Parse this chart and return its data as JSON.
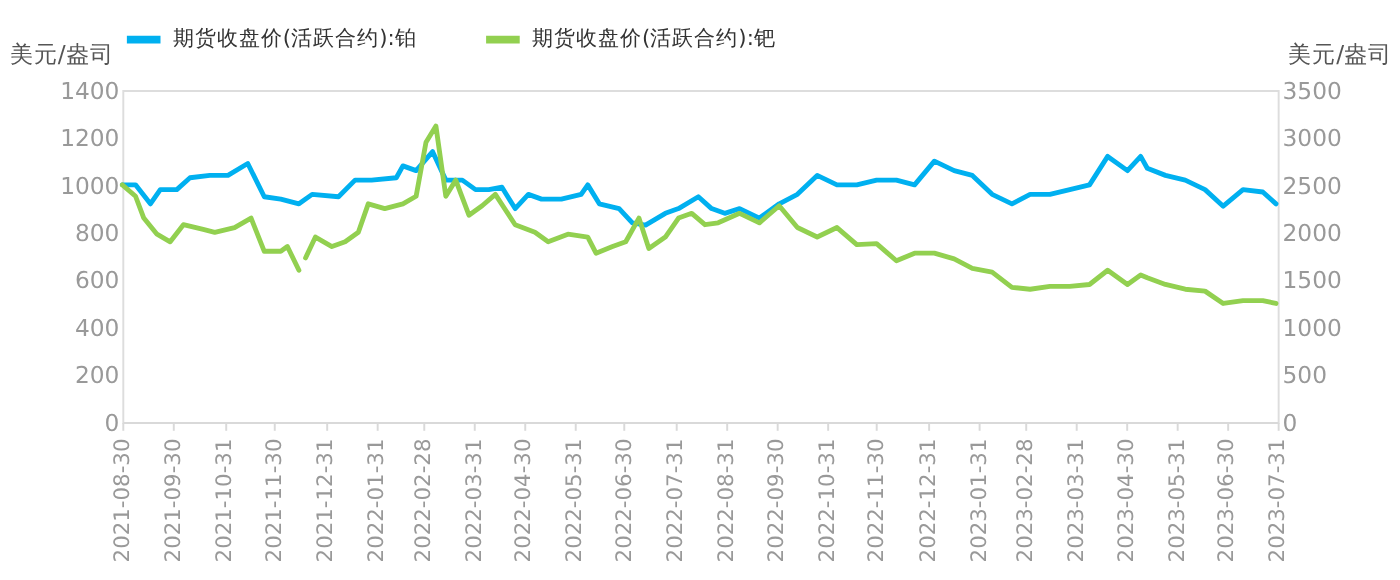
{
  "chart_data": {
    "type": "line",
    "ylabel": "美元/盎司",
    "y2label": "美元/盎司",
    "legend": "top",
    "grid": false,
    "marker": "none",
    "line_style": "solid",
    "ylim": [
      0,
      1400
    ],
    "yticks": [
      0,
      200,
      400,
      600,
      800,
      1000,
      1200,
      1400
    ],
    "y2lim": [
      0,
      3500
    ],
    "y2ticks": [
      0,
      500,
      1000,
      1500,
      2000,
      2500,
      3000,
      3500
    ],
    "xlim": [
      "2021-08-30",
      "2023-07-31"
    ],
    "xticks": [
      "2021-08-30",
      "2021-09-30",
      "2021-10-31",
      "2021-11-30",
      "2021-12-31",
      "2022-01-31",
      "2022-02-28",
      "2022-03-31",
      "2022-04-30",
      "2022-05-31",
      "2022-06-30",
      "2022-07-31",
      "2022-08-31",
      "2022-09-30",
      "2022-10-31",
      "2022-11-30",
      "2022-12-31",
      "2023-01-31",
      "2023-02-28",
      "2023-03-31",
      "2023-04-30",
      "2023-05-31",
      "2023-06-30",
      "2023-07-31"
    ],
    "series": [
      {
        "name": "期货收盘价(活跃合约):铂",
        "color": "#00b0f0",
        "x": [
          "2021-08-30",
          "2021-09-07",
          "2021-09-16",
          "2021-09-22",
          "2021-10-02",
          "2021-10-10",
          "2021-10-22",
          "2021-11-02",
          "2021-11-14",
          "2021-11-24",
          "2021-12-04",
          "2021-12-15",
          "2021-12-23",
          "2022-01-08",
          "2022-01-18",
          "2022-01-28",
          "2022-02-12",
          "2022-02-16",
          "2022-02-24",
          "2022-03-06",
          "2022-03-14",
          "2022-03-24",
          "2022-04-01",
          "2022-04-09",
          "2022-04-17",
          "2022-04-25",
          "2022-05-03",
          "2022-05-11",
          "2022-05-23",
          "2022-06-04",
          "2022-06-08",
          "2022-06-15",
          "2022-06-27",
          "2022-07-05",
          "2022-07-13",
          "2022-07-25",
          "2022-08-02",
          "2022-08-14",
          "2022-08-22",
          "2022-08-30",
          "2022-09-08",
          "2022-09-20",
          "2022-10-02",
          "2022-10-13",
          "2022-10-25",
          "2022-11-06",
          "2022-11-18",
          "2022-11-30",
          "2022-12-12",
          "2022-12-23",
          "2023-01-04",
          "2023-01-16",
          "2023-01-27",
          "2023-02-08",
          "2023-02-20",
          "2023-03-03",
          "2023-03-15",
          "2023-03-27",
          "2023-04-08",
          "2023-04-19",
          "2023-05-01",
          "2023-05-09",
          "2023-05-13",
          "2023-05-24",
          "2023-06-05",
          "2023-06-17",
          "2023-06-28",
          "2023-07-10",
          "2023-07-22",
          "2023-07-30"
        ],
        "values": [
          1000,
          1000,
          920,
          980,
          980,
          1030,
          1040,
          1040,
          1090,
          950,
          940,
          920,
          960,
          950,
          1020,
          1020,
          1030,
          1080,
          1060,
          1140,
          1020,
          1020,
          980,
          980,
          990,
          900,
          960,
          940,
          940,
          960,
          1000,
          920,
          900,
          840,
          830,
          880,
          900,
          950,
          900,
          880,
          900,
          860,
          920,
          960,
          1040,
          1000,
          1000,
          1020,
          1020,
          1000,
          1100,
          1060,
          1040,
          960,
          920,
          960,
          960,
          980,
          1000,
          1120,
          1060,
          1120,
          1070,
          1040,
          1020,
          980,
          910,
          980,
          970,
          920
        ]
      },
      {
        "name": "期货收盘价(活跃合约):钯",
        "color": "#92d050",
        "axis": "y2",
        "x": [
          "2021-08-30",
          "2021-09-07",
          "2021-09-12",
          "2021-09-20",
          "2021-09-28",
          "2021-10-06",
          "2021-10-18",
          "2021-10-25",
          "2021-11-06",
          "2021-11-16",
          "2021-11-24",
          "2021-12-04",
          "2021-12-08",
          "2021-12-15",
          "2021-12-17",
          "2021-12-19",
          "2021-12-25",
          "2022-01-04",
          "2022-01-12",
          "2022-01-20",
          "2022-01-26",
          "2022-02-05",
          "2022-02-16",
          "2022-02-24",
          "2022-03-02",
          "2022-03-08",
          "2022-03-14",
          "2022-03-20",
          "2022-03-28",
          "2022-04-05",
          "2022-04-13",
          "2022-04-25",
          "2022-05-07",
          "2022-05-15",
          "2022-05-27",
          "2022-06-08",
          "2022-06-13",
          "2022-06-23",
          "2022-07-01",
          "2022-07-09",
          "2022-07-15",
          "2022-07-25",
          "2022-08-02",
          "2022-08-10",
          "2022-08-18",
          "2022-08-26",
          "2022-09-08",
          "2022-09-20",
          "2022-10-02",
          "2022-10-13",
          "2022-10-25",
          "2022-11-06",
          "2022-11-18",
          "2022-11-30",
          "2022-12-12",
          "2022-12-23",
          "2023-01-04",
          "2023-01-16",
          "2023-01-27",
          "2023-02-08",
          "2023-02-20",
          "2023-03-03",
          "2023-03-15",
          "2023-03-27",
          "2023-04-08",
          "2023-04-19",
          "2023-05-01",
          "2023-05-09",
          "2023-05-13",
          "2023-05-24",
          "2023-06-05",
          "2023-06-17",
          "2023-06-28",
          "2023-07-10",
          "2023-07-22",
          "2023-07-30"
        ],
        "values": [
          2500,
          2380,
          2150,
          1980,
          1900,
          2080,
          2030,
          2000,
          2050,
          2150,
          1800,
          1800,
          1850,
          1600,
          null,
          1730,
          1950,
          1850,
          1900,
          2000,
          2300,
          2250,
          2300,
          2380,
          2950,
          3120,
          2380,
          2550,
          2180,
          2280,
          2400,
          2080,
          2000,
          1900,
          1980,
          1950,
          1780,
          1850,
          1900,
          2150,
          1830,
          1950,
          2150,
          2200,
          2080,
          2100,
          2200,
          2100,
          2280,
          2050,
          1950,
          2050,
          1870,
          1880,
          1700,
          1780,
          1780,
          1720,
          1620,
          1580,
          1420,
          1400,
          1430,
          1430,
          1450,
          1600,
          1450,
          1550,
          1520,
          1450,
          1400,
          1380,
          1250,
          1280,
          1280,
          1250
        ]
      }
    ]
  }
}
